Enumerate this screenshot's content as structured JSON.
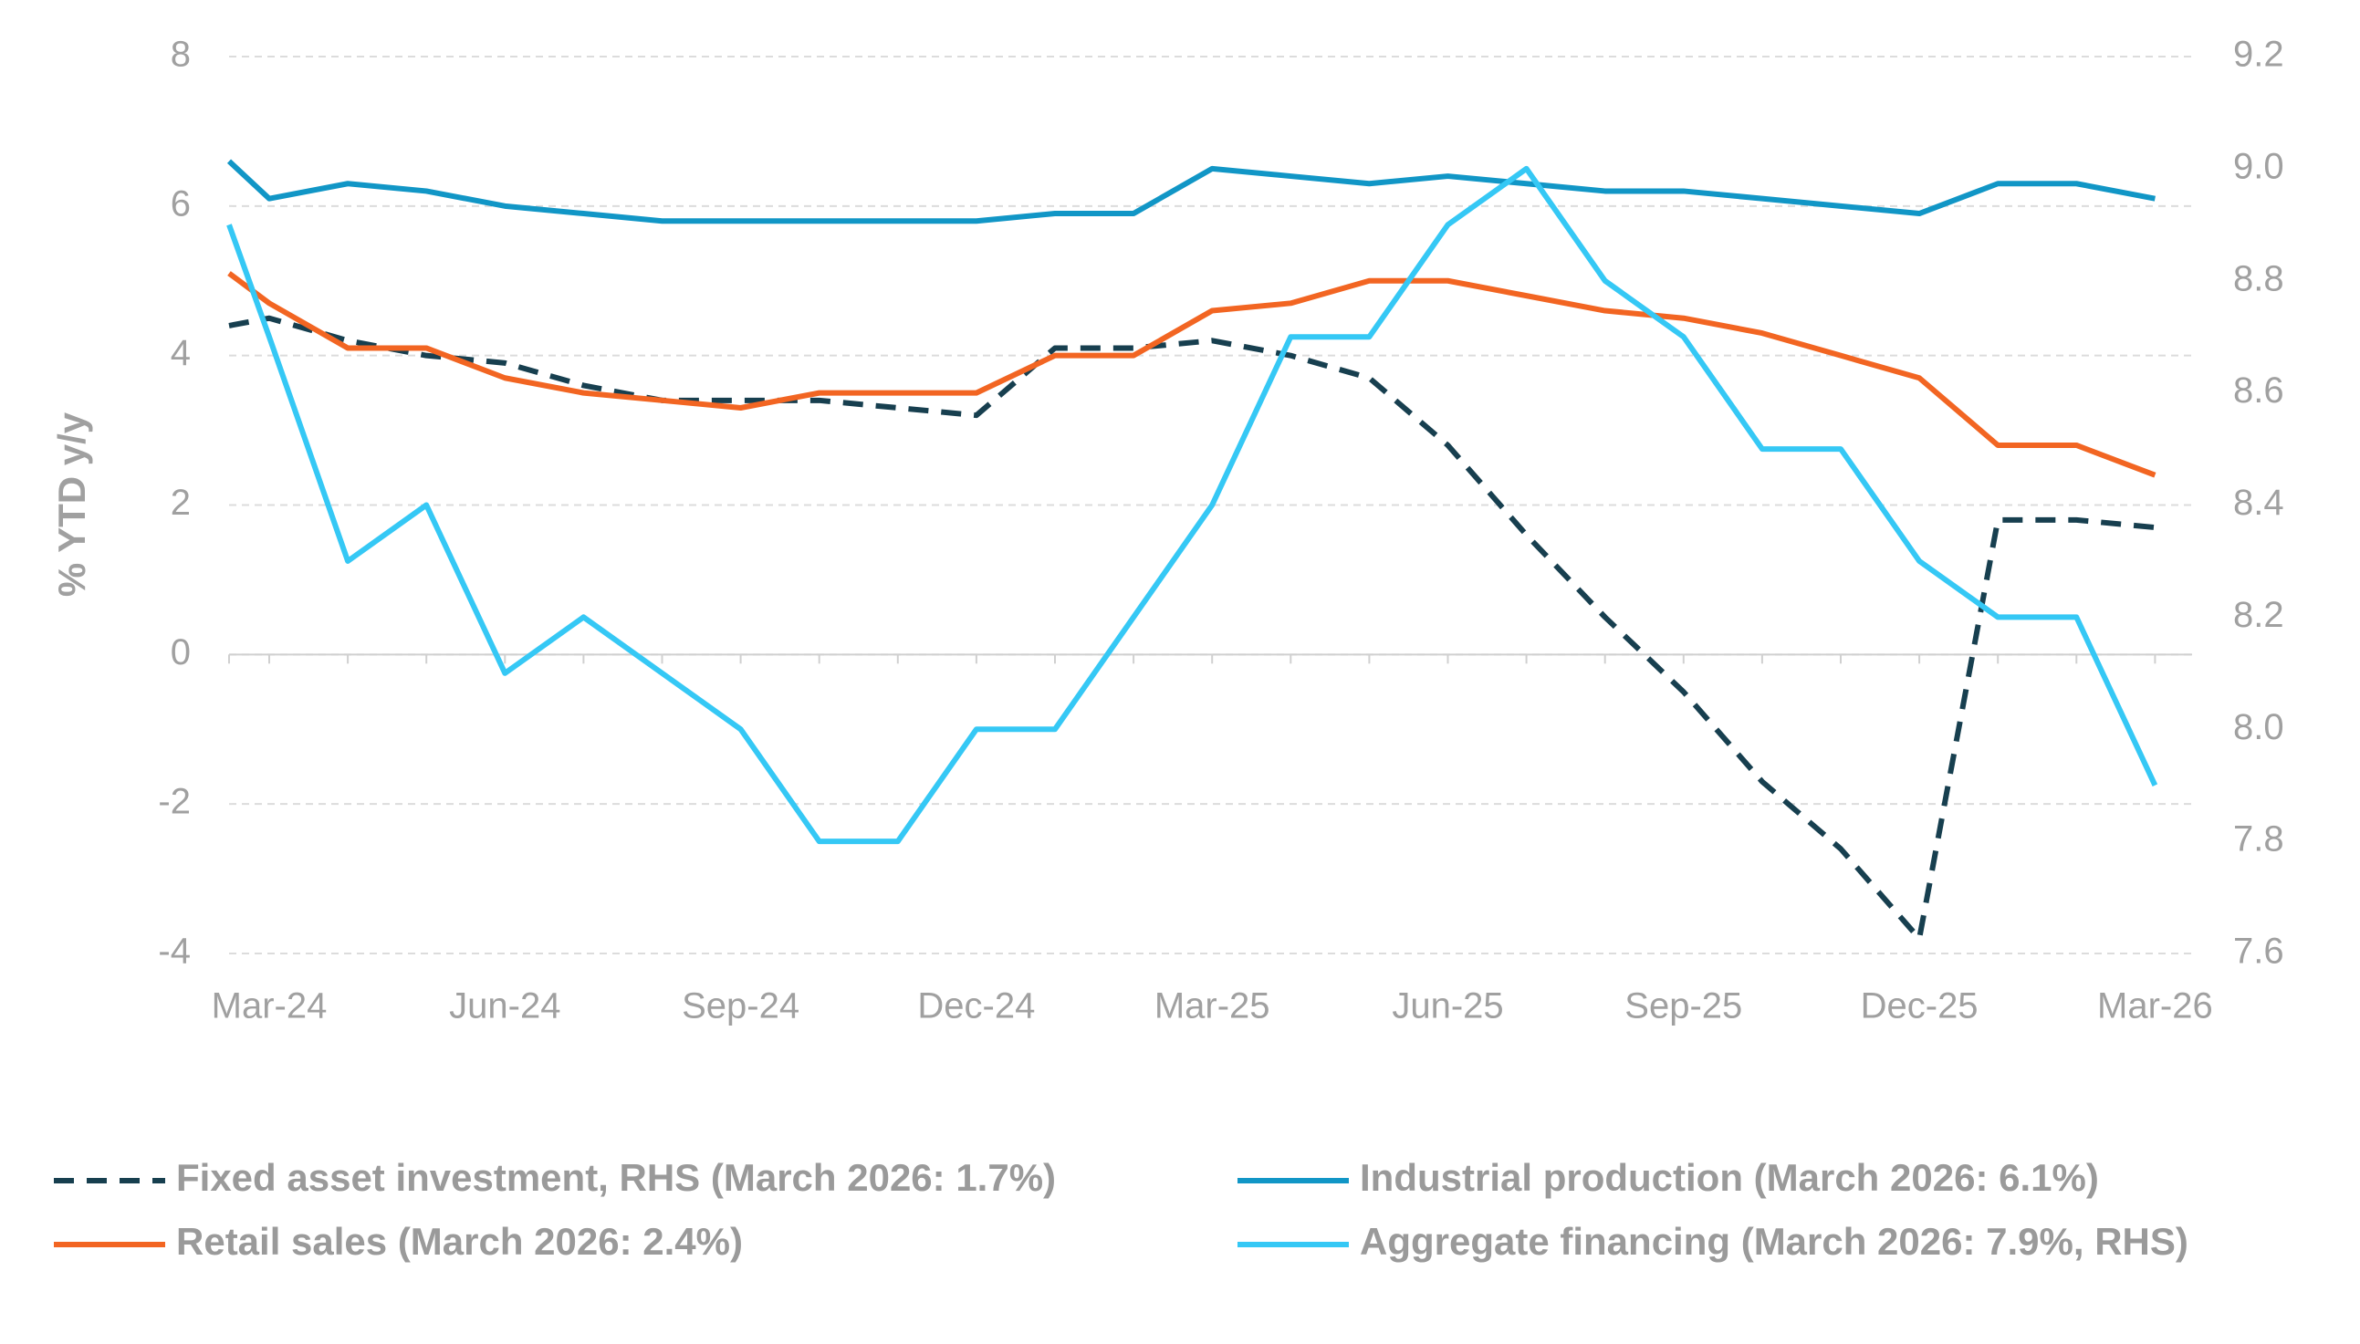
{
  "chart_data": {
    "type": "line",
    "y_label": "% YTD y/y",
    "categories": [
      null,
      "Mar-24",
      null,
      null,
      "Jun-24",
      null,
      null,
      "Sep-24",
      null,
      null,
      "Dec-24",
      null,
      null,
      "Mar-25",
      null,
      null,
      "Jun-25",
      null,
      null,
      "Sep-25",
      null,
      null,
      "Dec-25",
      null,
      null,
      "Mar-26"
    ],
    "ylim": [
      -4,
      8
    ],
    "yticks": [
      -4,
      -2,
      0,
      2,
      4,
      6,
      8
    ],
    "y2lim": [
      7.6,
      9.2
    ],
    "y2ticks": [
      7.6,
      7.8,
      {
        "value": 8,
        "label": "8.0"
      },
      8.2,
      8.4,
      8.6,
      8.8,
      {
        "value": 9,
        "label": "9.0"
      },
      9.2
    ],
    "grid": true,
    "legend": "bottom",
    "series": [
      {
        "name": "Fixed asset investment, RHS (March 2026: 1.7%)",
        "color": "#173f4f",
        "dashed": true,
        "values": [
          4.4,
          4.5,
          4.2,
          4.0,
          3.9,
          3.6,
          3.4,
          3.4,
          3.4,
          3.3,
          3.2,
          4.1,
          4.1,
          4.2,
          4.0,
          3.7,
          2.8,
          1.6,
          0.5,
          -0.5,
          -1.7,
          -2.6,
          -3.8,
          1.8,
          1.8,
          1.7
        ]
      },
      {
        "name": "Industrial production (March 2026: 6.1%)",
        "color": "#1196c6",
        "values": [
          6.6,
          6.1,
          6.3,
          6.2,
          6.0,
          5.9,
          5.8,
          5.8,
          5.8,
          5.8,
          5.8,
          5.9,
          5.9,
          6.5,
          6.4,
          6.3,
          6.4,
          6.3,
          6.2,
          6.2,
          6.1,
          6.0,
          5.9,
          6.3,
          6.3,
          6.1
        ]
      },
      {
        "name": "Retail sales (March 2026: 2.4%)",
        "color": "#f26522",
        "values": [
          5.1,
          4.7,
          4.1,
          4.1,
          3.7,
          3.5,
          3.4,
          3.3,
          3.5,
          3.5,
          3.5,
          4.0,
          4.0,
          4.6,
          4.7,
          5.0,
          5.0,
          4.8,
          4.6,
          4.5,
          4.3,
          4.0,
          3.7,
          2.8,
          2.8,
          2.4
        ]
      },
      {
        "name": "Aggregate financing (March 2026: 7.9%, RHS)",
        "color": "#35c8f5",
        "axis": "y2",
        "values": [
          8.9,
          8.7,
          8.3,
          8.4,
          8.1,
          8.2,
          8.1,
          8.0,
          7.8,
          7.8,
          8.0,
          8.0,
          8.2,
          8.4,
          8.7,
          8.7,
          8.9,
          9.0,
          8.8,
          8.7,
          8.5,
          8.5,
          8.3,
          8.2,
          8.2,
          7.9
        ]
      }
    ]
  }
}
